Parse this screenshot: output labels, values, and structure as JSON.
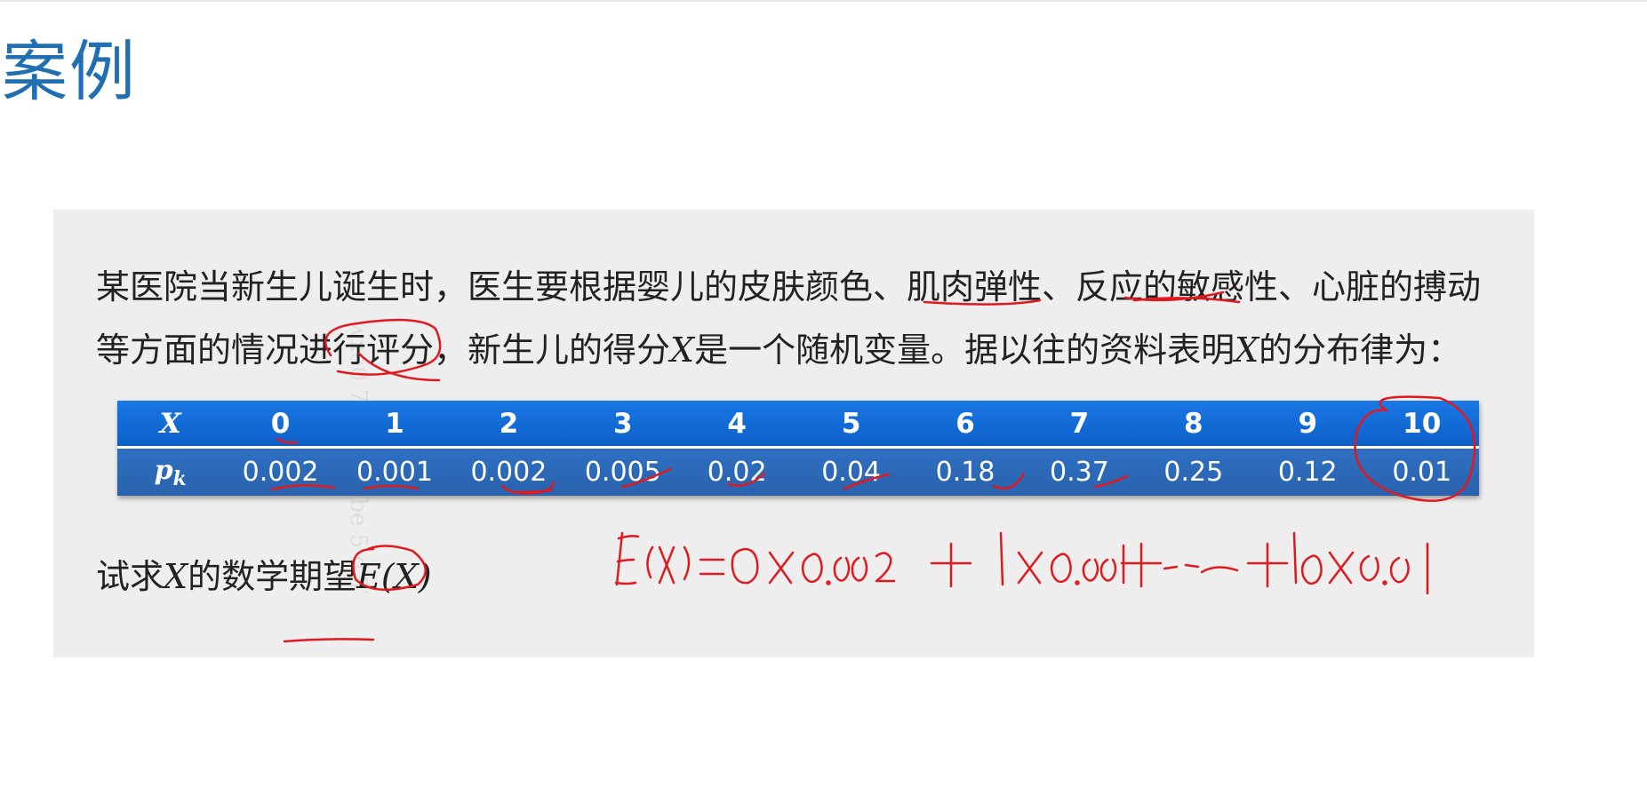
{
  "title": "案例",
  "paragraph": {
    "line1": "某医院当新生儿诞生时，医生要根据婴儿的皮肤颜色、肌肉弹性、反应的敏感性、心脏的搏动",
    "line2_a": "等方面的情况进行评分，新生儿的得分",
    "line2_var1": "X",
    "line2_b": "是一个随机变量。据以往的资料表明",
    "line2_var2": "X",
    "line2_c": "的分布律为："
  },
  "distribution_table": {
    "x_header": "X",
    "p_header": "p",
    "p_subscript": "k",
    "x_values": [
      "0",
      "1",
      "2",
      "3",
      "4",
      "5",
      "6",
      "7",
      "8",
      "9",
      "10"
    ],
    "p_values": [
      "0.002",
      "0.001",
      "0.002",
      "0.005",
      "0.02",
      "0.04",
      "0.18",
      "0.37",
      "0.25",
      "0.12",
      "0.01"
    ]
  },
  "question": {
    "prefix": "试求",
    "var": "X",
    "middle": "的数学期望",
    "expr": "E(X)"
  },
  "annotation_color": "#e0191f"
}
